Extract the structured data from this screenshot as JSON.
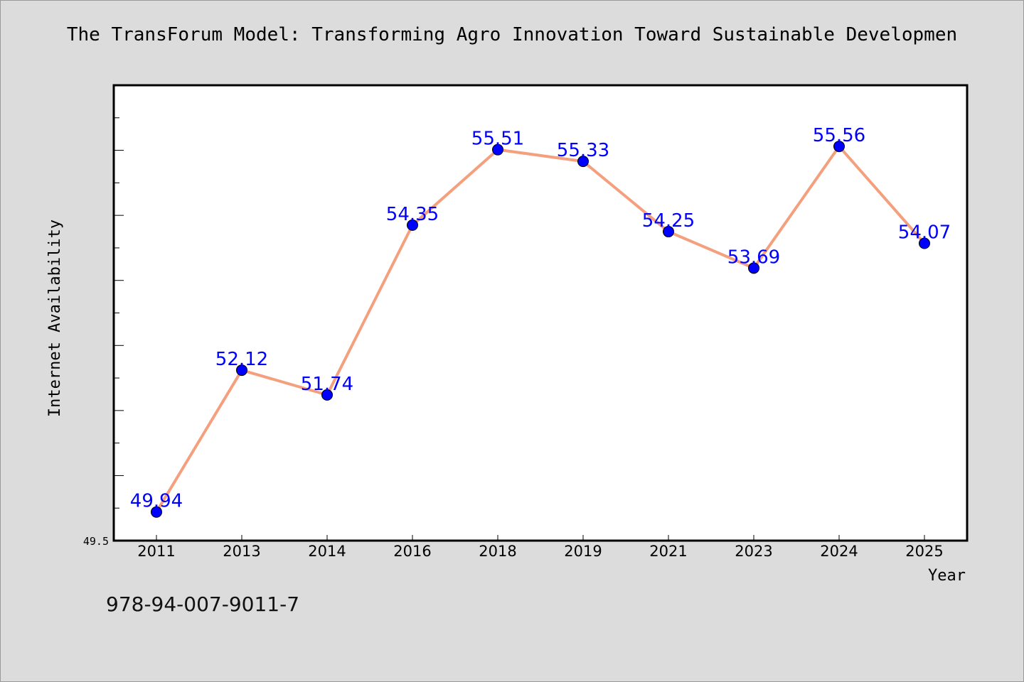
{
  "chart_data": {
    "type": "line",
    "title": "The TransForum Model: Transforming Agro Innovation Toward Sustainable Developmen",
    "xlabel": "Year",
    "ylabel": "Internet Availability",
    "categories": [
      "2011",
      "2013",
      "2014",
      "2016",
      "2018",
      "2019",
      "2021",
      "2023",
      "2024",
      "2025"
    ],
    "series": [
      {
        "values": [
          49.94,
          52.12,
          51.74,
          54.35,
          55.51,
          55.33,
          54.25,
          53.69,
          55.56,
          54.07
        ],
        "labels": [
          "49.94",
          "52.12",
          "51.74",
          "54.35",
          "55.51",
          "55.33",
          "54.25",
          "53.69",
          "55.56",
          "54.07"
        ]
      }
    ],
    "y_tick_labels": [
      "49.5"
    ],
    "ylim": [
      49.5,
      56.5
    ],
    "grid": false,
    "colors": {
      "line": "#f4a07f",
      "marker": "#0000ff",
      "data_label": "#0000ff",
      "plot_background": "#ffffff",
      "figure_background": "#dcdcdc"
    }
  },
  "footer": {
    "isbn": "978-94-007-9011-7"
  }
}
